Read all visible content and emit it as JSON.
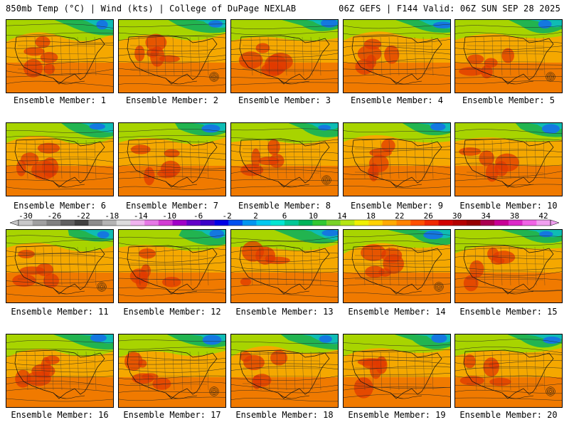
{
  "header": {
    "left_title": "850mb Temp (°C) | Wind (kts) | College of DuPage NEXLAB",
    "right_title": "06Z GEFS | F144 Valid: 06Z SUN SEP 28 2025"
  },
  "members": [
    {
      "label": "Ensemble Member: 1"
    },
    {
      "label": "Ensemble Member: 2"
    },
    {
      "label": "Ensemble Member: 3"
    },
    {
      "label": "Ensemble Member: 4"
    },
    {
      "label": "Ensemble Member: 5"
    },
    {
      "label": "Ensemble Member: 6"
    },
    {
      "label": "Ensemble Member: 7"
    },
    {
      "label": "Ensemble Member: 8"
    },
    {
      "label": "Ensemble Member: 9"
    },
    {
      "label": "Ensemble Member: 10"
    },
    {
      "label": "Ensemble Member: 11"
    },
    {
      "label": "Ensemble Member: 12"
    },
    {
      "label": "Ensemble Member: 13"
    },
    {
      "label": "Ensemble Member: 14"
    },
    {
      "label": "Ensemble Member: 15"
    },
    {
      "label": "Ensemble Member: 16"
    },
    {
      "label": "Ensemble Member: 17"
    },
    {
      "label": "Ensemble Member: 18"
    },
    {
      "label": "Ensemble Member: 19"
    },
    {
      "label": "Ensemble Member: 20"
    }
  ],
  "colorbar": {
    "ticks": [
      "-30",
      "-26",
      "-22",
      "-18",
      "-14",
      "-10",
      "-6",
      "-2",
      "2",
      "6",
      "10",
      "14",
      "18",
      "22",
      "26",
      "30",
      "34",
      "38",
      "42"
    ],
    "colors": [
      "#c8c8c8",
      "#a0a0a0",
      "#808080",
      "#606060",
      "#404040",
      "#8c8c8c",
      "#b4b4b4",
      "#dcdcdc",
      "#f0b4f0",
      "#e678e6",
      "#d23cd2",
      "#a000c8",
      "#6400c8",
      "#3c00c8",
      "#0000e6",
      "#0050f0",
      "#0096f0",
      "#00c8f0",
      "#00e6d2",
      "#00c896",
      "#00b45a",
      "#32c832",
      "#78d228",
      "#b4e614",
      "#f0f000",
      "#ffd200",
      "#ffaa00",
      "#ff8200",
      "#ff5000",
      "#f02800",
      "#d20000",
      "#b40000",
      "#960000",
      "#aa0050",
      "#c80096",
      "#dc28c8",
      "#f064e6",
      "#f0a0f0"
    ]
  },
  "theme": {
    "hot": "#e03a00",
    "warm": "#f07a00",
    "mild": "#f5a800",
    "cool": "#a8d400",
    "cold": "#22b450",
    "colder": "#0fbcb4",
    "coldest": "#1478e0"
  }
}
